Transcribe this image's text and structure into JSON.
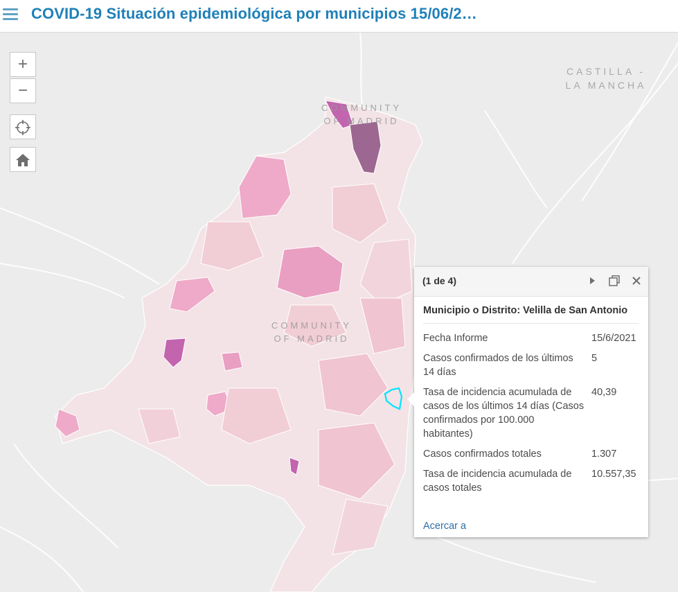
{
  "header": {
    "title": "COVID-19 Situación epidemiológica por municipios 15/06/2…"
  },
  "map": {
    "labels": {
      "neighbor_region_line1": "CASTILLA -",
      "neighbor_region_line2": "LA MANCHA",
      "overlay_north_line1": "COMMUNITY",
      "overlay_north_line2": "OF MADRID",
      "overlay_center_line1": "COMMUNITY",
      "overlay_center_line2": "OF MADRID"
    },
    "controls": {
      "zoom_in": "+",
      "zoom_out": "−"
    },
    "colors": {
      "background": "#ececec",
      "region_base": "#f3e3e6",
      "low": "#f1cdd6",
      "medium": "#eeaac8",
      "high": "#d27cbc",
      "very_high": "#9c6790",
      "selected_outline": "#00e5ff"
    }
  },
  "popup": {
    "count": "(1 de 4)",
    "title": "Municipio o Distrito: Velilla de San Antonio",
    "fields": [
      {
        "label": "Fecha Informe",
        "value": "15/6/2021"
      },
      {
        "label": "Casos confirmados de los últimos 14 días",
        "value": "5"
      },
      {
        "label": "Tasa de incidencia acumulada de casos de los últimos 14 días (Casos confirmados por 100.000 habitantes)",
        "value": "40,39"
      },
      {
        "label": "Casos confirmados totales",
        "value": "1.307"
      },
      {
        "label": "Tasa de incidencia acumulada de casos totales",
        "value": "10.557,35"
      }
    ],
    "zoom_link": "Acercar a"
  }
}
